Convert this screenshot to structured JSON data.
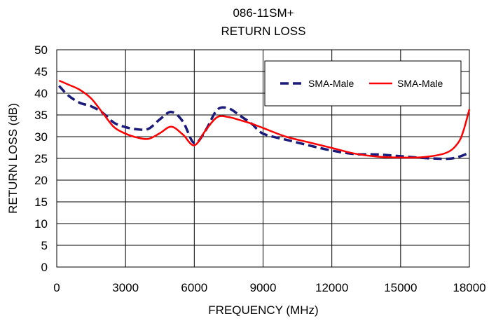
{
  "chart_data": {
    "type": "line",
    "title": "086-11SM+",
    "subtitle": "RETURN LOSS",
    "xlabel": "FREQUENCY (MHz)",
    "ylabel": "RETURN LOSS (dB)",
    "xlim": [
      0,
      18000
    ],
    "ylim": [
      0,
      50
    ],
    "xticks": [
      0,
      3000,
      6000,
      9000,
      12000,
      15000,
      18000
    ],
    "yticks": [
      0,
      5,
      10,
      15,
      20,
      25,
      30,
      35,
      40,
      45,
      50
    ],
    "xtick_labels": [
      "0",
      "3000",
      "6000",
      "9000",
      "12000",
      "15000",
      "18000"
    ],
    "ytick_labels": [
      "0",
      "5",
      "10",
      "15",
      "20",
      "25",
      "30",
      "35",
      "40",
      "45",
      "50"
    ],
    "grid": true,
    "legend_position": "top-right",
    "series": [
      {
        "name": "SMA-Male",
        "color": "#1a1a7a",
        "dash": "dashed",
        "x": [
          100,
          500,
          1000,
          1500,
          2000,
          2500,
          3000,
          3500,
          4000,
          4500,
          5000,
          5500,
          6000,
          6500,
          7000,
          7500,
          8000,
          8500,
          9000,
          10000,
          11000,
          12000,
          13000,
          14000,
          15000,
          16000,
          17000,
          17500,
          18000
        ],
        "values": [
          41.7,
          39.5,
          37.8,
          37.0,
          35.5,
          33.2,
          32.2,
          31.7,
          31.8,
          34.0,
          35.7,
          33.5,
          28.5,
          31.5,
          36.2,
          36.5,
          34.8,
          33.0,
          30.7,
          29.3,
          28.0,
          26.8,
          26.0,
          25.9,
          25.5,
          25.1,
          24.9,
          25.3,
          26.3
        ]
      },
      {
        "name": "SMA-Male",
        "color": "#ff0000",
        "dash": "solid",
        "x": [
          100,
          500,
          1000,
          1500,
          2000,
          2500,
          3000,
          3500,
          4000,
          4500,
          5000,
          5500,
          6000,
          6500,
          7000,
          7500,
          8000,
          8500,
          9000,
          10000,
          11000,
          12000,
          13000,
          14000,
          15000,
          16000,
          17000,
          17500,
          17750,
          18000
        ],
        "values": [
          42.9,
          42.0,
          40.8,
          38.8,
          35.5,
          32.2,
          30.7,
          29.8,
          29.5,
          30.8,
          32.3,
          30.5,
          28.0,
          31.5,
          34.5,
          34.5,
          33.8,
          33.0,
          32.0,
          30.0,
          28.7,
          27.4,
          26.1,
          25.4,
          25.2,
          25.3,
          26.3,
          28.5,
          31.5,
          36.3
        ]
      }
    ]
  }
}
